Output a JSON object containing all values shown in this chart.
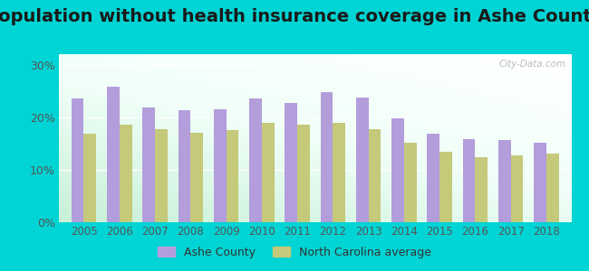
{
  "title": "Population without health insurance coverage in Ashe County",
  "years": [
    2005,
    2006,
    2007,
    2008,
    2009,
    2010,
    2011,
    2012,
    2013,
    2014,
    2015,
    2016,
    2017,
    2018
  ],
  "ashe_county": [
    23.5,
    25.8,
    21.8,
    21.3,
    21.5,
    23.5,
    22.7,
    24.7,
    23.7,
    19.8,
    16.8,
    15.8,
    15.6,
    15.2
  ],
  "nc_average": [
    16.8,
    18.5,
    17.8,
    17.1,
    17.5,
    19.0,
    18.5,
    19.0,
    17.8,
    15.1,
    13.4,
    12.4,
    12.7,
    13.1
  ],
  "ashe_color": "#b39ddb",
  "nc_color": "#c5c97a",
  "background_color": "#00d4d4",
  "yticks": [
    0,
    10,
    20,
    30
  ],
  "ylim": [
    0,
    32
  ],
  "title_fontsize": 14,
  "watermark": "City-Data.com",
  "legend_labels": [
    "Ashe County",
    "North Carolina average"
  ],
  "tick_fontsize": 8.5,
  "ytick_fontsize": 9
}
